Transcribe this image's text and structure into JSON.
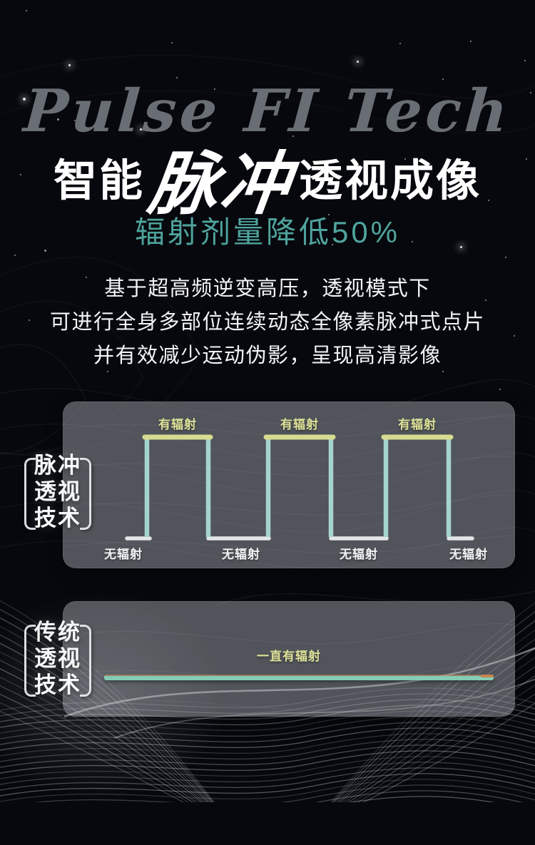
{
  "watermark": "Pulse FI Tech",
  "title": {
    "prefix": "智能",
    "emphasis": "脉冲",
    "suffix": "透视成像"
  },
  "subtitle": "辐射剂量降低50%",
  "description": [
    "基于超高频逆变高压，透视模式下",
    "可进行全身多部位连续动态全像素脉冲式点片",
    "并有效减少运动伪影，呈现高清影像"
  ],
  "pulse_panel": {
    "side_label": [
      "脉冲",
      "透视",
      "技术"
    ],
    "on_labels": [
      "有辐射",
      "有辐射",
      "有辐射"
    ],
    "off_labels": [
      "无辐射",
      "无辐射",
      "无辐射",
      "无辐射"
    ]
  },
  "traditional_panel": {
    "side_label": [
      "传统",
      "透视",
      "技术"
    ],
    "line_label": "一直有辐射"
  },
  "colors": {
    "background": "#06080d",
    "subtitle_teal": "#4fa49d",
    "pulse_top_yellow": "#d7db90",
    "pulse_vertical_teal": "#a5d4cd",
    "pulse_bottom_white": "#e3e5e6",
    "label_yellow": "#dce096",
    "trad_line_teal": "#84ccb6",
    "trad_line_tip_orange": "#c8854f",
    "panel_gray": "rgba(172,177,184,0.45)"
  },
  "chart_data": [
    {
      "type": "line",
      "title": "脉冲透视技术",
      "shape": "square-wave",
      "pulse_count": 3,
      "high_state_label": "有辐射",
      "low_state_label": "无辐射",
      "low_label_count": 4,
      "legend_position": "left-bracket-label"
    },
    {
      "type": "line",
      "title": "传统透视技术",
      "shape": "constant-high",
      "state_label": "一直有辐射",
      "legend_position": "left-bracket-label"
    }
  ]
}
